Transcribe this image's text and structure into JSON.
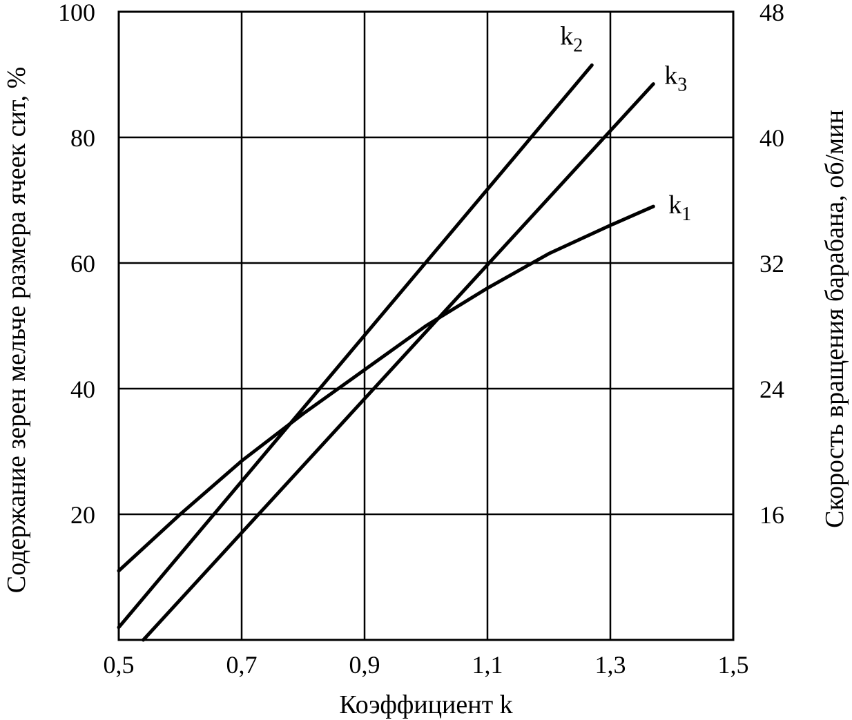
{
  "chart_data": {
    "type": "line",
    "xlabel": "Коэффициент k",
    "ylabel_left": "Содержание зерен мельче размера ячеек сит, %",
    "ylabel_right": "Скорость вращения барабана, об/мин",
    "xlim": [
      0.5,
      1.5
    ],
    "ylim_left": [
      0,
      100
    ],
    "ylim_right": [
      8,
      48
    ],
    "grid": true,
    "x_ticks": [
      "0,5",
      "0,7",
      "0,9",
      "1,1",
      "1,3",
      "1,5"
    ],
    "y_ticks_left": [
      "20",
      "40",
      "60",
      "80",
      "100"
    ],
    "y_ticks_right": [
      "16",
      "24",
      "32",
      "40",
      "48"
    ],
    "series": [
      {
        "name": "k1",
        "label_main": "k",
        "label_sub": "1",
        "points": [
          [
            0.5,
            11
          ],
          [
            0.6,
            20
          ],
          [
            0.7,
            28.5
          ],
          [
            0.8,
            36
          ],
          [
            0.9,
            43
          ],
          [
            1.0,
            50
          ],
          [
            1.1,
            56
          ],
          [
            1.2,
            61.5
          ],
          [
            1.3,
            66
          ],
          [
            1.37,
            69
          ]
        ]
      },
      {
        "name": "k2",
        "label_main": "k",
        "label_sub": "2",
        "points": [
          [
            0.5,
            2
          ],
          [
            1.27,
            91.5
          ]
        ]
      },
      {
        "name": "k3",
        "label_main": "k",
        "label_sub": "3",
        "points": [
          [
            0.54,
            0
          ],
          [
            1.37,
            88.5
          ]
        ]
      }
    ]
  }
}
